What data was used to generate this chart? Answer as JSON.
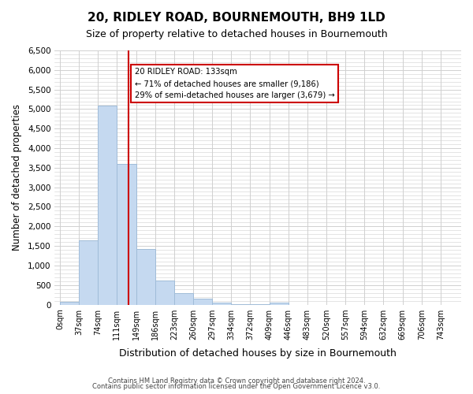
{
  "title": "20, RIDLEY ROAD, BOURNEMOUTH, BH9 1LD",
  "subtitle": "Size of property relative to detached houses in Bournemouth",
  "xlabel": "Distribution of detached houses by size in Bournemouth",
  "ylabel": "Number of detached properties",
  "bin_labels": [
    "0sqm",
    "37sqm",
    "74sqm",
    "111sqm",
    "149sqm",
    "186sqm",
    "223sqm",
    "260sqm",
    "297sqm",
    "334sqm",
    "372sqm",
    "409sqm",
    "446sqm",
    "483sqm",
    "520sqm",
    "557sqm",
    "594sqm",
    "632sqm",
    "669sqm",
    "706sqm",
    "743sqm"
  ],
  "bar_heights": [
    75,
    1650,
    5080,
    3600,
    1430,
    620,
    300,
    145,
    55,
    10,
    5,
    50,
    0,
    0,
    0,
    0,
    0,
    0,
    0,
    0,
    0
  ],
  "bar_color": "#c5d9f0",
  "bar_edgecolor": "#a0bcd8",
  "property_line_x": 133,
  "annotation_text": "20 RIDLEY ROAD: 133sqm\n← 71% of detached houses are smaller (9,186)\n29% of semi-detached houses are larger (3,679) →",
  "annotation_box_color": "#ffffff",
  "annotation_box_edgecolor": "#cc0000",
  "vline_color": "#cc0000",
  "ylim": [
    0,
    6500
  ],
  "yticks": [
    0,
    500,
    1000,
    1500,
    2000,
    2500,
    3000,
    3500,
    4000,
    4500,
    5000,
    5500,
    6000,
    6500
  ],
  "footer1": "Contains HM Land Registry data © Crown copyright and database right 2024.",
  "footer2": "Contains public sector information licensed under the Open Government Licence v3.0.",
  "grid_color": "#d0d0d0",
  "bg_color": "#ffffff",
  "bin_width": 37
}
